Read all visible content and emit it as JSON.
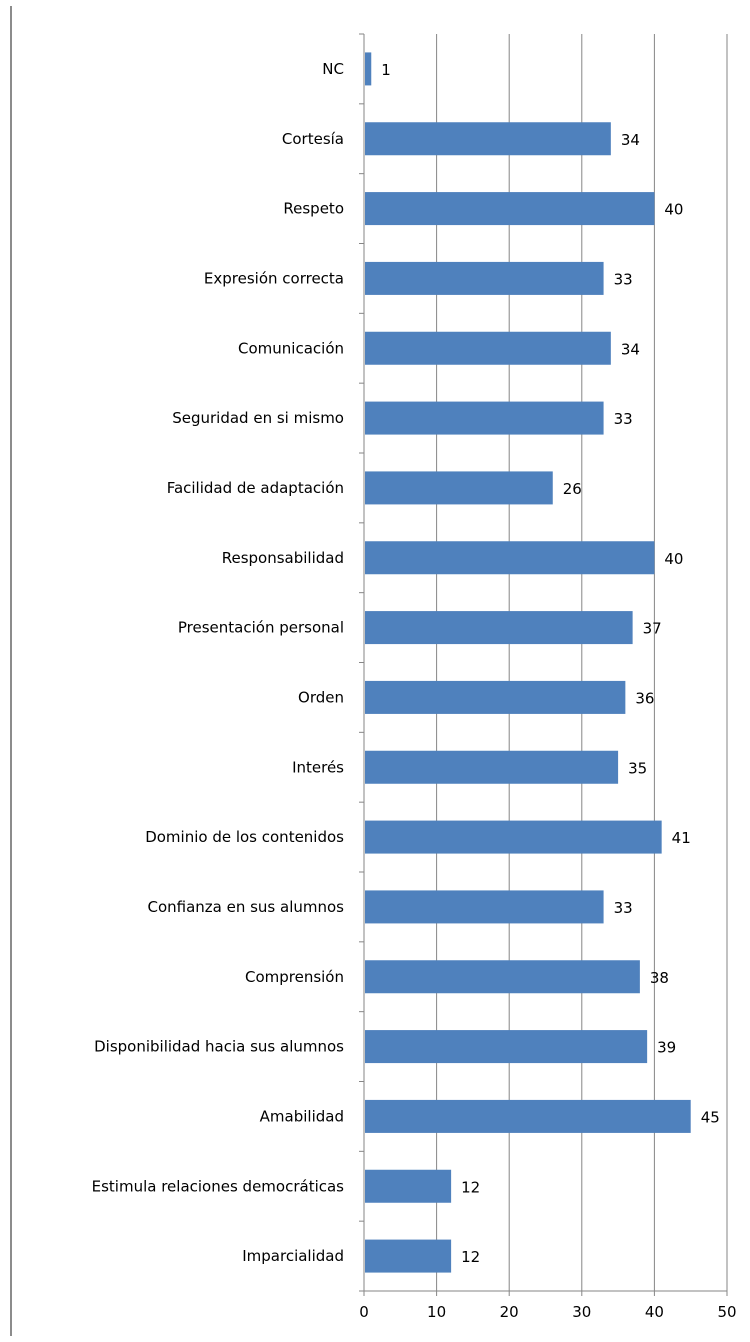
{
  "chart_data": {
    "type": "bar",
    "orientation": "horizontal",
    "categories": [
      "NC",
      "Cortesía",
      "Respeto",
      "Expresión correcta",
      "Comunicación",
      "Seguridad en si mismo",
      "Facilidad de adaptación",
      "Responsabilidad",
      "Presentación personal",
      "Orden",
      "Interés",
      "Dominio de los contenidos",
      "Confianza en sus alumnos",
      "Comprensión",
      "Disponibilidad hacia sus alumnos",
      "Amabilidad",
      "Estimula relaciones democráticas",
      "Imparcialidad"
    ],
    "values": [
      1,
      34,
      40,
      33,
      34,
      33,
      26,
      40,
      37,
      36,
      35,
      41,
      33,
      38,
      39,
      45,
      12,
      12
    ],
    "data_labels": [
      "1",
      "34",
      "40",
      "33",
      "34",
      "33",
      "26",
      "40",
      "37",
      "36",
      "35",
      "41",
      "33",
      "38",
      "39",
      "45",
      "12",
      "12"
    ],
    "xticks": [
      0,
      10,
      20,
      30,
      40,
      50
    ],
    "xtick_labels": [
      "0",
      "10",
      "20",
      "30",
      "40",
      "50"
    ],
    "xlim": [
      0,
      50
    ],
    "title": "",
    "xlabel": "",
    "ylabel": "",
    "grid": "vertical",
    "legend": "none",
    "bar_color": "#4f81bd",
    "grid_color": "#868686"
  }
}
